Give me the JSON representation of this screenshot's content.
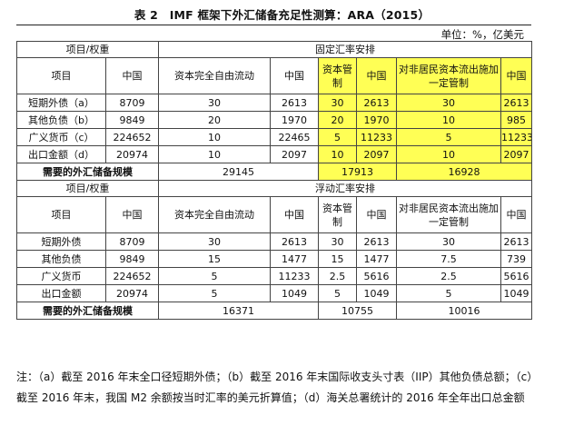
{
  "title": "表 2　IMF 框架下外汇储备充足性测算：ARA（2015）",
  "unit": "单位：%，亿美元",
  "table": {
    "item_weight": "项目/权重",
    "item": "项目",
    "china": "中国",
    "capital_free": "资本完全自由流动",
    "capital_control": "资本管制",
    "nonresident_control": "对非居民资本流出施加一定管制",
    "fixed": {
      "section": "固定汇率安排",
      "rows": [
        {
          "label": "短期外债（a）",
          "v": [
            "8709",
            "30",
            "2613",
            "30",
            "2613",
            "30",
            "2613"
          ]
        },
        {
          "label": "其他负债（b）",
          "v": [
            "9849",
            "20",
            "1970",
            "20",
            "1970",
            "10",
            "985"
          ]
        },
        {
          "label": "广义货币（c）",
          "v": [
            "224652",
            "10",
            "22465",
            "5",
            "11233",
            "5",
            "11233"
          ]
        },
        {
          "label": "出口金额（d）",
          "v": [
            "20974",
            "10",
            "2097",
            "10",
            "2097",
            "10",
            "2097"
          ]
        }
      ],
      "required_label": "需要的外汇储备规模",
      "required": [
        "29145",
        "17913",
        "16928"
      ]
    },
    "floating": {
      "section": "浮动汇率安排",
      "rows": [
        {
          "label": "短期外债",
          "v": [
            "8709",
            "30",
            "2613",
            "30",
            "2613",
            "30",
            "2613"
          ]
        },
        {
          "label": "其他负债",
          "v": [
            "9849",
            "15",
            "1477",
            "15",
            "1477",
            "7.5",
            "739"
          ]
        },
        {
          "label": "广义货币",
          "v": [
            "224652",
            "5",
            "11233",
            "2.5",
            "5616",
            "2.5",
            "5616"
          ]
        },
        {
          "label": "出口金额",
          "v": [
            "20974",
            "5",
            "1049",
            "5",
            "1049",
            "5",
            "1049"
          ]
        }
      ],
      "required_label": "需要的外汇储备规模",
      "required": [
        "16371",
        "10755",
        "10016"
      ]
    }
  },
  "note": "注：（a）截至 2016 年末全口径短期外债；（b）截至 2016 年末国际收支头寸表（IIP）其他负债总额；（c）截至 2016 年末，我国 M2 余额按当时汇率的美元折算值；（d）海关总署统计的 2016 年全年出口总金额"
}
